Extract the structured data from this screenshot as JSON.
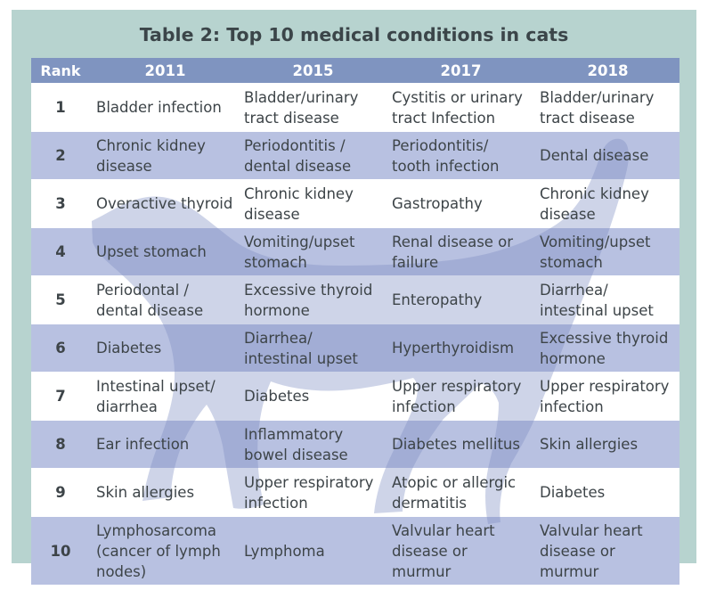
{
  "title": "Table 2: Top 10 medical conditions in cats",
  "columns": [
    "Rank",
    "2011",
    "2015",
    "2017",
    "2018"
  ],
  "rows": [
    {
      "rank": "1",
      "y2011": "Bladder infection",
      "y2015": "Bladder/urinary tract disease",
      "y2017": "Cystitis or urinary tract Infection",
      "y2018": "Bladder/urinary tract disease"
    },
    {
      "rank": "2",
      "y2011": "Chronic kidney disease",
      "y2015": "Periodontitis / dental disease",
      "y2017": "Periodontitis/ tooth infection",
      "y2018": "Dental disease"
    },
    {
      "rank": "3",
      "y2011": "Overactive thyroid",
      "y2015": "Chronic kidney disease",
      "y2017": "Gastropathy",
      "y2018": "Chronic kidney disease"
    },
    {
      "rank": "4",
      "y2011": "Upset stomach",
      "y2015": "Vomiting/upset stomach",
      "y2017": "Renal disease or failure",
      "y2018": "Vomiting/upset stomach"
    },
    {
      "rank": "5",
      "y2011": "Periodontal / dental disease",
      "y2015": "Excessive thyroid hormone",
      "y2017": "Enteropathy",
      "y2018": "Diarrhea/ intestinal upset"
    },
    {
      "rank": "6",
      "y2011": "Diabetes",
      "y2015": "Diarrhea/ intestinal upset",
      "y2017": "Hyperthyroidism",
      "y2018": "Excessive thyroid hormone"
    },
    {
      "rank": "7",
      "y2011": "Intestinal upset/ diarrhea",
      "y2015": "Diabetes",
      "y2017": "Upper respiratory infection",
      "y2018": "Upper respiratory infection"
    },
    {
      "rank": "8",
      "y2011": "Ear infection",
      "y2015": "Inflammatory bowel disease",
      "y2017": "Diabetes mellitus",
      "y2018": "Skin allergies"
    },
    {
      "rank": "9",
      "y2011": "Skin allergies",
      "y2015": "Upper respiratory infection",
      "y2017": "Atopic or allergic dermatitis",
      "y2018": "Diabetes"
    },
    {
      "rank": "10",
      "y2011": "Lymphosarcoma (cancer of lymph nodes)",
      "y2015": "Lymphoma",
      "y2017": "Valvular heart disease or murmur",
      "y2018": "Valvular heart disease or murmur"
    }
  ],
  "colors": {
    "frame": "#b7d3cf",
    "header": "#7f94c0",
    "stripe": "#b8c1e1",
    "text": "#3d4448",
    "watermark": "#7f8fc2"
  },
  "watermark_icon": "cat-silhouette-icon"
}
